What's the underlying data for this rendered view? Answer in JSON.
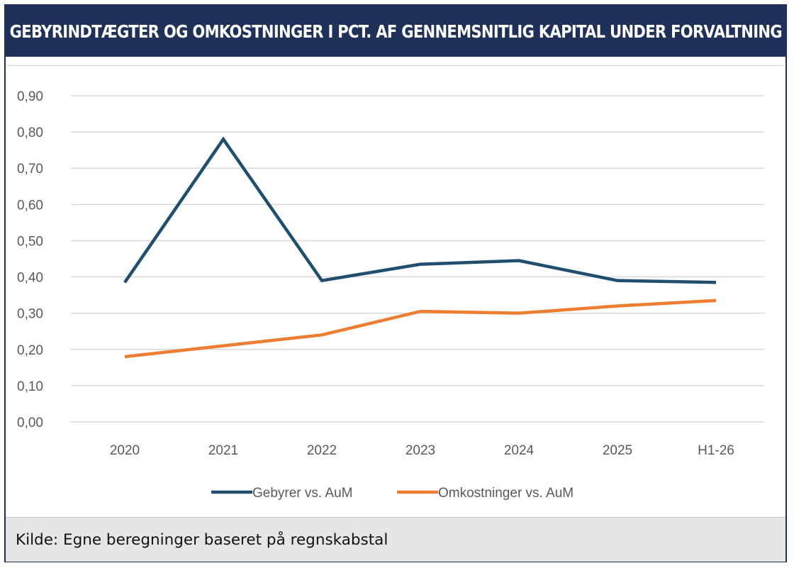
{
  "title": "GEBYRINDTÆGTER OG OMKOSTNINGER I PCT. AF GENNEMSNITLIG KAPITAL UNDER FORVALTNING",
  "source": "Kilde: Egne beregninger baseret på regnskabstal",
  "colors": {
    "title_bg": "#1f3158",
    "gebyrer": "#1f4e6e",
    "omkostninger": "#ed7d31",
    "grid": "#d9d9d9",
    "footer_bg": "#e6e6e6"
  },
  "chart_data": {
    "type": "line",
    "categories": [
      "2020",
      "2021",
      "2022",
      "2023",
      "2024",
      "2025",
      "H1-26"
    ],
    "series": [
      {
        "name": "Gebyrer vs. AuM",
        "values": [
          0.385,
          0.78,
          0.39,
          0.435,
          0.445,
          0.39,
          0.385
        ]
      },
      {
        "name": "Omkostninger vs. AuM",
        "values": [
          0.18,
          0.21,
          0.24,
          0.305,
          0.3,
          0.32,
          0.335
        ]
      }
    ],
    "yticks": [
      "0,00",
      "0,10",
      "0,20",
      "0,30",
      "0,40",
      "0,50",
      "0,60",
      "0,70",
      "0,80",
      "0,90"
    ],
    "ylim": [
      0,
      0.9
    ],
    "grid": true,
    "legend_position": "bottom"
  }
}
